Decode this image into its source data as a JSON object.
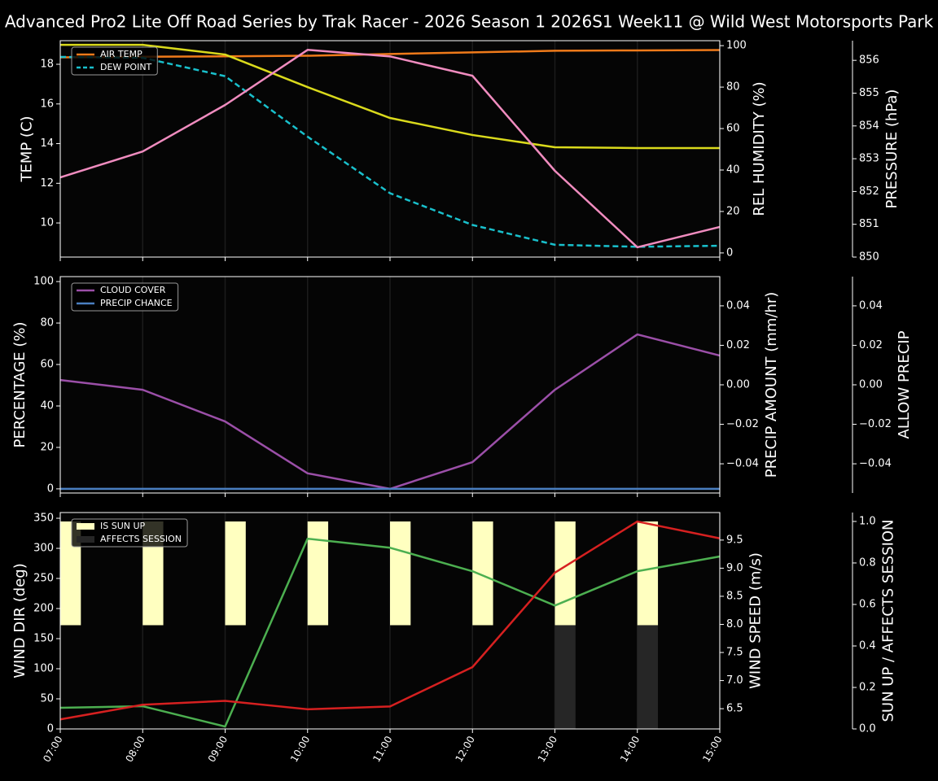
{
  "title": "Advanced Pro2 Lite Off Road Series by Trak Racer - 2026 Season 1 2026S1 Week11 @ Wild West Motorsports Park",
  "chart_data": [
    {
      "type": "line",
      "legend": "upper left",
      "grid": true,
      "ylabel": "TEMP (C)",
      "ylabel_color": "#ffffff",
      "ylim": [
        8.28,
        19.19
      ],
      "yticks": [
        10,
        12,
        14,
        16,
        18
      ],
      "y2label": "REL HUMIDITY (%)",
      "y2label_color": "#d8d820",
      "y2lim": [
        -2,
        102.4
      ],
      "y2ticks": [
        0,
        20,
        40,
        60,
        80,
        100
      ],
      "y3label": "PRESSURE (hPa)",
      "y3label_color": "#f080b8",
      "y3lim": [
        850,
        856.6
      ],
      "y3ticks": [
        850,
        851,
        852,
        853,
        854,
        855,
        856
      ],
      "series": [
        {
          "name": "AIR TEMP",
          "color": "#ef7a1a",
          "legend": true,
          "values": [
            18.35,
            18.38,
            18.4,
            18.43,
            18.52,
            18.6,
            18.68,
            18.7,
            18.72
          ]
        },
        {
          "name": "DEW POINT",
          "color": "#19c0cc",
          "style": "dashed",
          "legend": true,
          "values": [
            18.37,
            18.33,
            17.4,
            14.35,
            11.5,
            9.9,
            8.9,
            8.8,
            8.85
          ]
        },
        {
          "color": "#dada1c",
          "axis": "y2",
          "values": [
            100.4,
            100.4,
            95.7,
            80,
            65.1,
            56.9,
            51,
            50.6,
            50.6
          ]
        },
        {
          "color": "#f08cbf",
          "axis": "y3",
          "values": [
            852.43,
            853.22,
            854.64,
            856.32,
            856.12,
            855.53,
            852.63,
            850.3,
            850.92
          ]
        }
      ]
    },
    {
      "type": "line",
      "legend": "upper left",
      "grid": true,
      "ylabel": "PERCENTAGE (%)",
      "ylabel_color": "#ffffff",
      "ylim": [
        -2,
        102.4
      ],
      "yticks": [
        0,
        20,
        40,
        60,
        80,
        100
      ],
      "y2label": "PRECIP AMOUNT (mm/hr)",
      "y2label_color": "#a0522d",
      "y2lim": [
        -0.0548,
        0.0548
      ],
      "y2ticks": [
        {
          "value": -0.04,
          "label": "−0.04"
        },
        {
          "value": -0.02,
          "label": "−0.02"
        },
        {
          "value": 0,
          "label": "0.00"
        },
        0.02,
        0.04
      ],
      "y3label": "ALLOW PRECIP",
      "y3label_color": "#ffffff",
      "y3lim": [
        -0.0548,
        0.0548
      ],
      "y3ticks": [
        {
          "value": -0.04,
          "label": "−0.04"
        },
        {
          "value": -0.02,
          "label": "−0.02"
        },
        {
          "value": 0,
          "label": "0.00"
        },
        0.02,
        0.04
      ],
      "series": [
        {
          "name": "CLOUD COVER",
          "color": "#9b4fa8",
          "legend": true,
          "values": [
            52.5,
            47.8,
            32.5,
            7.5,
            0,
            12.9,
            47.8,
            74.5,
            64.3
          ]
        },
        {
          "name": "PRECIP CHANCE",
          "color": "#4a7fc1",
          "legend": true,
          "values": [
            0,
            0,
            0,
            0,
            0,
            0,
            0,
            0,
            0
          ]
        }
      ]
    },
    {
      "type": "line",
      "legend": "upper left",
      "grid": true,
      "categories": [
        "07:00",
        "08:00",
        "09:00",
        "10:00",
        "11:00",
        "12:00",
        "13:00",
        "14:00",
        "15:00"
      ],
      "ylabel": "WIND DIR (deg)",
      "ylabel_color": "#4caf50",
      "ylim": [
        0,
        359.5
      ],
      "yticks": [
        0,
        50,
        100,
        150,
        200,
        250,
        300,
        350
      ],
      "y2label": "WIND SPEED (m/s)",
      "y2label_color": "#d62020",
      "y2lim": [
        6.14,
        9.99
      ],
      "y2ticks": [
        6.5,
        {
          "value": 7,
          "label": "7.0"
        },
        7.5,
        {
          "value": 8,
          "label": "8.0"
        },
        8.5,
        {
          "value": 9,
          "label": "9.0"
        },
        9.5
      ],
      "y3label": "SUN UP / AFFECTS SESSION",
      "y3label_color": "#ffffff",
      "y3lim": [
        0,
        1.043
      ],
      "y3ticks": [
        {
          "value": 0,
          "label": "0.0"
        },
        0.2,
        0.4,
        0.6,
        0.8,
        {
          "value": 1,
          "label": "1.0"
        }
      ],
      "series": [
        {
          "name": "IS SUN UP",
          "type": "bar",
          "color": "#ffffc0",
          "axis": "y3",
          "bottom": 0.5,
          "legend": true,
          "values": [
            1,
            1,
            1,
            1,
            1,
            1,
            1,
            1,
            null
          ]
        },
        {
          "name": "AFFECTS SESSION",
          "type": "bar",
          "color": "#262626",
          "axis": "y3",
          "legend": true,
          "values": [
            0,
            0,
            0,
            0,
            0,
            0,
            0.5,
            0.5,
            null
          ]
        },
        {
          "color": "#4caf50",
          "values": [
            35.1,
            37.8,
            4,
            316,
            301,
            262,
            205,
            262,
            286.5
          ]
        },
        {
          "color": "#d62020",
          "axis": "y2",
          "values": [
            6.31,
            6.57,
            6.64,
            6.49,
            6.54,
            7.24,
            8.92,
            9.83,
            9.53
          ]
        }
      ]
    }
  ]
}
